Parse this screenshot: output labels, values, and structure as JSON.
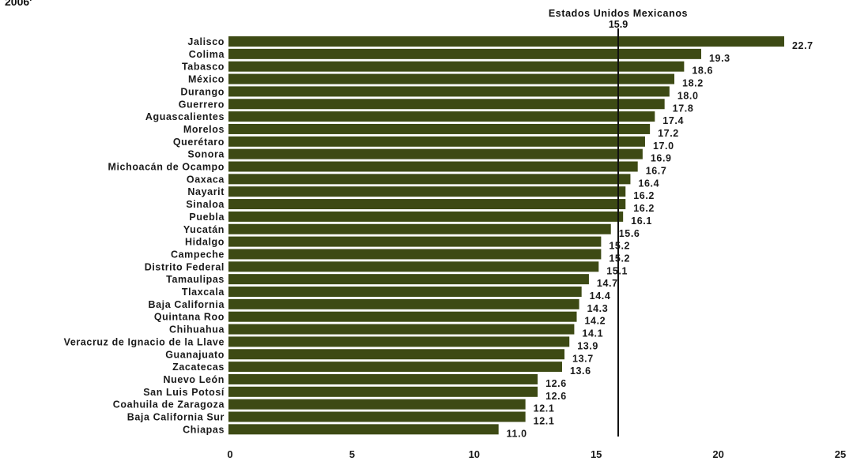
{
  "corner_title": "2006'",
  "chart_data": {
    "type": "bar",
    "orientation": "horizontal",
    "categories": [
      "Jalisco",
      "Colima",
      "Tabasco",
      "México",
      "Durango",
      "Guerrero",
      "Aguascalientes",
      "Morelos",
      "Querétaro",
      "Sonora",
      "Michoacán de Ocampo",
      "Oaxaca",
      "Nayarit",
      "Sinaloa",
      "Puebla",
      "Yucatán",
      "Hidalgo",
      "Campeche",
      "Distrito Federal",
      "Tamaulipas",
      "Tlaxcala",
      "Baja California",
      "Quintana Roo",
      "Chihuahua",
      "Veracruz de Ignacio de la Llave",
      "Guanajuato",
      "Zacatecas",
      "Nuevo León",
      "San Luis Potosí",
      "Coahuila de Zaragoza",
      "Baja California Sur",
      "Chiapas"
    ],
    "values": [
      22.7,
      19.3,
      18.6,
      18.2,
      18.0,
      17.8,
      17.4,
      17.2,
      17.0,
      16.9,
      16.7,
      16.4,
      16.2,
      16.2,
      16.1,
      15.6,
      15.2,
      15.2,
      15.1,
      14.7,
      14.4,
      14.3,
      14.2,
      14.1,
      13.9,
      13.7,
      13.6,
      12.6,
      12.6,
      12.1,
      12.1,
      11.0
    ],
    "value_labels": [
      "22.7",
      "19.3",
      "18.6",
      "18.2",
      "18.0",
      "17.8",
      "17.4",
      "17.2",
      "17.0",
      "16.9",
      "16.7",
      "16.4",
      "16.2",
      "16.2",
      "16.1",
      "15.6",
      "15.2",
      "15.2",
      "15.1",
      "14.7",
      "14.4",
      "14.3",
      "14.2",
      "14.1",
      "13.9",
      "13.7",
      "13.6",
      "12.6",
      "12.6",
      "12.1",
      "12.1",
      "11.0"
    ],
    "xlim": [
      0,
      25
    ],
    "xticks": [
      "0",
      "5",
      "10",
      "15",
      "20",
      "25"
    ],
    "reference_line": {
      "label": "Estados Unidos Mexicanos",
      "value": 15.9,
      "value_label": "15.9"
    },
    "bar_color": "#3d4a14",
    "grid": false
  }
}
